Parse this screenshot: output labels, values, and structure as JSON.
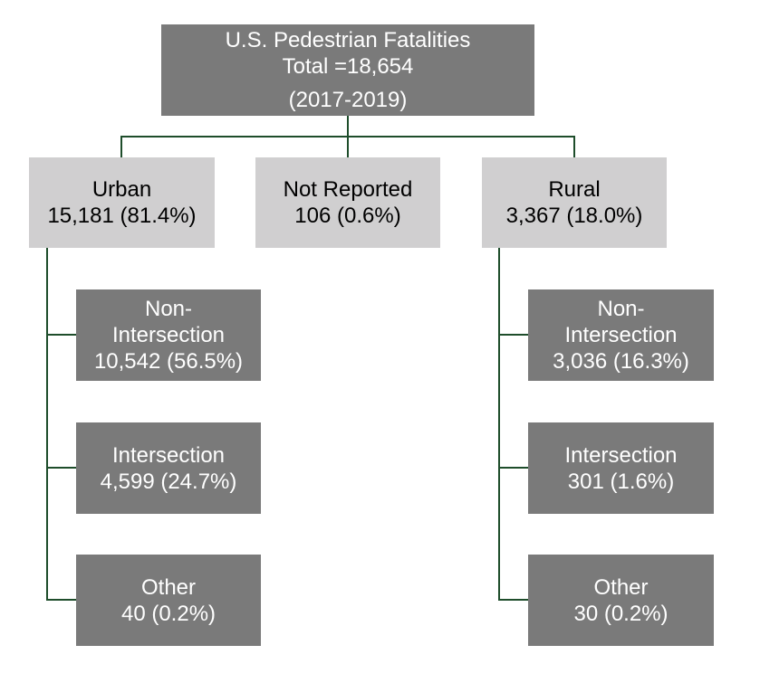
{
  "root": {
    "line1": "U.S. Pedestrian Fatalities",
    "line2": "Total =18,654",
    "line3": "(2017-2019)"
  },
  "urban": {
    "label": "Urban",
    "value": "15,181 (81.4%)",
    "children": {
      "non_intersection": {
        "line1": "Non-",
        "line2": "Intersection",
        "value": "10,542 (56.5%)"
      },
      "intersection": {
        "label": "Intersection",
        "value": "4,599 (24.7%)"
      },
      "other": {
        "label": "Other",
        "value": "40 (0.2%)"
      }
    }
  },
  "not_reported": {
    "label": "Not Reported",
    "value": "106 (0.6%)"
  },
  "rural": {
    "label": "Rural",
    "value": "3,367 (18.0%)",
    "children": {
      "non_intersection": {
        "line1": "Non-",
        "line2": "Intersection",
        "value": "3,036 (16.3%)"
      },
      "intersection": {
        "label": "Intersection",
        "value": "301 (1.6%)"
      },
      "other": {
        "label": "Other",
        "value": "30 (0.2%)"
      }
    }
  },
  "colors": {
    "dark_box": "#7a7a7a",
    "light_box": "#d0cfd0",
    "connector": "#1e4d2b"
  }
}
